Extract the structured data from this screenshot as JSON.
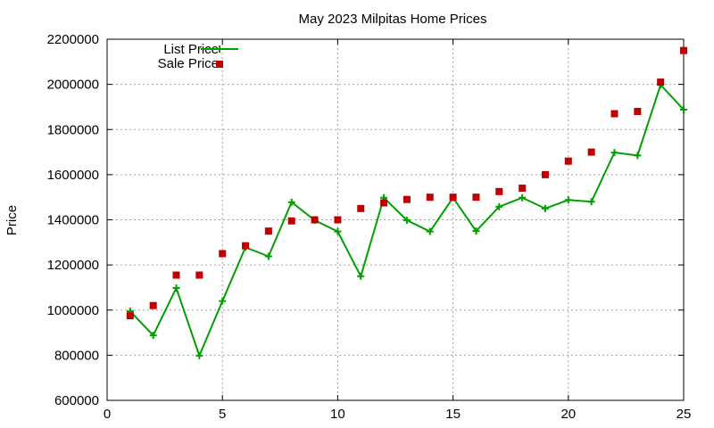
{
  "chart_data": {
    "type": "line",
    "title": "May 2023 Milpitas Home Prices",
    "xlabel": "",
    "ylabel": "Price",
    "xlim": [
      0,
      25
    ],
    "ylim": [
      600000,
      2200000
    ],
    "xticks": [
      0,
      5,
      10,
      15,
      20,
      25
    ],
    "yticks": [
      600000,
      800000,
      1000000,
      1200000,
      1400000,
      1600000,
      1800000,
      2000000,
      2200000
    ],
    "grid": true,
    "legend_position": "top-left",
    "series": [
      {
        "name": "List Price",
        "style": "line+cross",
        "color": "#00a000",
        "x": [
          1,
          2,
          3,
          4,
          5,
          6,
          7,
          8,
          9,
          10,
          11,
          12,
          13,
          14,
          15,
          16,
          17,
          18,
          19,
          20,
          21,
          22,
          23,
          24,
          25
        ],
        "y": [
          995000,
          888000,
          1098000,
          798000,
          1040000,
          1278000,
          1238000,
          1478000,
          1398000,
          1348000,
          1150000,
          1498000,
          1398000,
          1348000,
          1498000,
          1350000,
          1458000,
          1498000,
          1450000,
          1488000,
          1480000,
          1698000,
          1685000,
          1998000,
          1888000
        ]
      },
      {
        "name": "Sale Price",
        "style": "square",
        "color": "#c00000",
        "x": [
          1,
          2,
          3,
          4,
          5,
          6,
          7,
          8,
          9,
          10,
          11,
          12,
          13,
          14,
          15,
          16,
          17,
          18,
          19,
          20,
          21,
          22,
          23,
          24,
          25
        ],
        "y": [
          975000,
          1020000,
          1155000,
          1155000,
          1250000,
          1285000,
          1350000,
          1395000,
          1400000,
          1400000,
          1450000,
          1475000,
          1490000,
          1500000,
          1500000,
          1500000,
          1525000,
          1540000,
          1600000,
          1660000,
          1700000,
          1870000,
          1880000,
          2010000,
          2150000
        ]
      }
    ]
  }
}
